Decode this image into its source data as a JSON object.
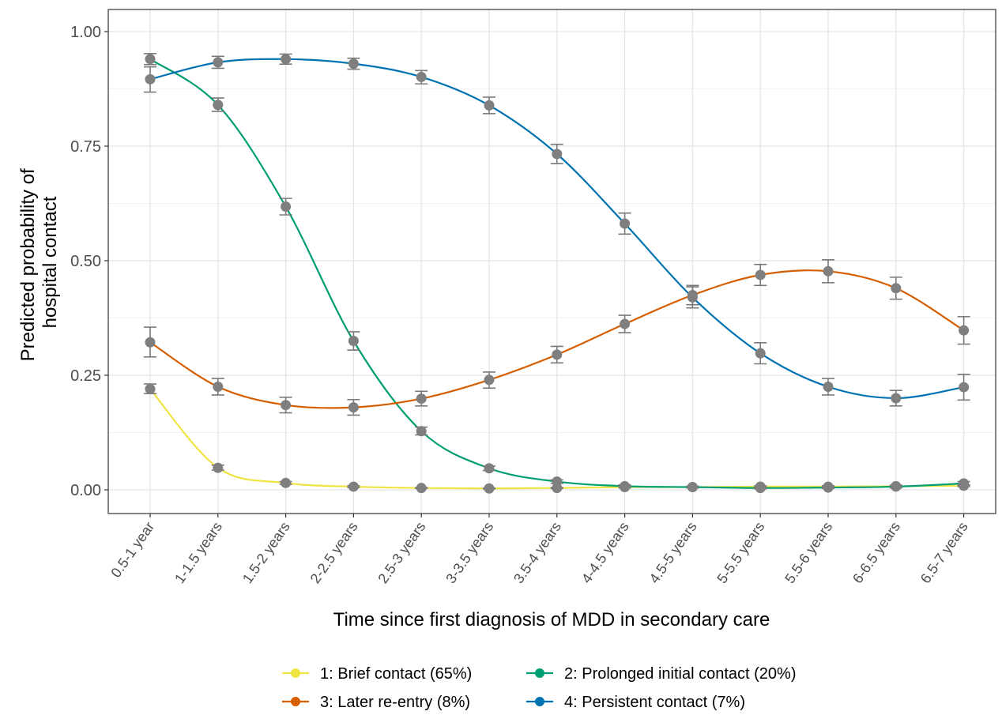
{
  "chart_data": {
    "type": "line",
    "xlabel": "Time since first diagnosis of MDD in secondary care",
    "ylabel": "Predicted probability of hospital contact",
    "ylabel_lines": [
      "Predicted probability of",
      "hospital contact"
    ],
    "ylim": [
      -0.05,
      1.04
    ],
    "yticks": [
      0,
      0.25,
      0.5,
      0.75,
      1.0
    ],
    "ytick_labels": [
      "0.00",
      "0.25",
      "0.50",
      "0.75",
      "1.00"
    ],
    "grid": true,
    "legend_position": "bottom",
    "categories": [
      "0.5-1 year",
      "1-1.5 years",
      "1.5-2 years",
      "2-2.5 years",
      "2.5-3 years",
      "3-3.5 years",
      "3.5-4 years",
      "4-4.5 years",
      "4.5-5 years",
      "5-5.5 years",
      "5.5-6 years",
      "6-6.5 years",
      "6.5-7 years"
    ],
    "series": [
      {
        "name": "1: Brief contact (65%)",
        "color": "#F0E442",
        "values": [
          0.22,
          0.048,
          0.015,
          0.007,
          0.004,
          0.003,
          0.004,
          0.006,
          0.006,
          0.007,
          0.007,
          0.008,
          0.009
        ],
        "err_low": [
          0.21,
          0.043,
          0.012,
          0.005,
          0.003,
          0.002,
          0.003,
          0.004,
          0.004,
          0.005,
          0.005,
          0.006,
          0.007
        ],
        "err_high": [
          0.231,
          0.054,
          0.018,
          0.009,
          0.005,
          0.004,
          0.005,
          0.008,
          0.008,
          0.009,
          0.009,
          0.01,
          0.011
        ]
      },
      {
        "name": "2: Prolonged initial contact (20%)",
        "color": "#009E73",
        "values": [
          0.94,
          0.84,
          0.618,
          0.325,
          0.128,
          0.047,
          0.018,
          0.008,
          0.006,
          0.004,
          0.005,
          0.007,
          0.014
        ],
        "err_low": [
          0.928,
          0.826,
          0.6,
          0.305,
          0.12,
          0.042,
          0.014,
          0.005,
          0.004,
          0.002,
          0.003,
          0.004,
          0.01
        ],
        "err_high": [
          0.952,
          0.855,
          0.636,
          0.345,
          0.137,
          0.052,
          0.022,
          0.011,
          0.008,
          0.006,
          0.007,
          0.01,
          0.018
        ]
      },
      {
        "name": "3: Later re-entry (8%)",
        "color": "#D55E00",
        "values": [
          0.322,
          0.225,
          0.185,
          0.18,
          0.199,
          0.24,
          0.295,
          0.362,
          0.425,
          0.469,
          0.477,
          0.44,
          0.348
        ],
        "err_low": [
          0.29,
          0.207,
          0.168,
          0.163,
          0.183,
          0.222,
          0.277,
          0.343,
          0.404,
          0.446,
          0.452,
          0.416,
          0.318
        ],
        "err_high": [
          0.355,
          0.243,
          0.202,
          0.197,
          0.215,
          0.257,
          0.313,
          0.381,
          0.446,
          0.492,
          0.502,
          0.464,
          0.378
        ]
      },
      {
        "name": "4: Persistent contact (7%)",
        "color": "#0072B2",
        "values": [
          0.896,
          0.933,
          0.94,
          0.93,
          0.901,
          0.839,
          0.733,
          0.581,
          0.42,
          0.298,
          0.225,
          0.2,
          0.224
        ],
        "err_low": [
          0.868,
          0.92,
          0.929,
          0.918,
          0.886,
          0.821,
          0.712,
          0.558,
          0.397,
          0.275,
          0.207,
          0.183,
          0.196
        ],
        "err_high": [
          0.923,
          0.946,
          0.951,
          0.942,
          0.915,
          0.857,
          0.754,
          0.604,
          0.443,
          0.321,
          0.243,
          0.217,
          0.252
        ]
      }
    ]
  }
}
